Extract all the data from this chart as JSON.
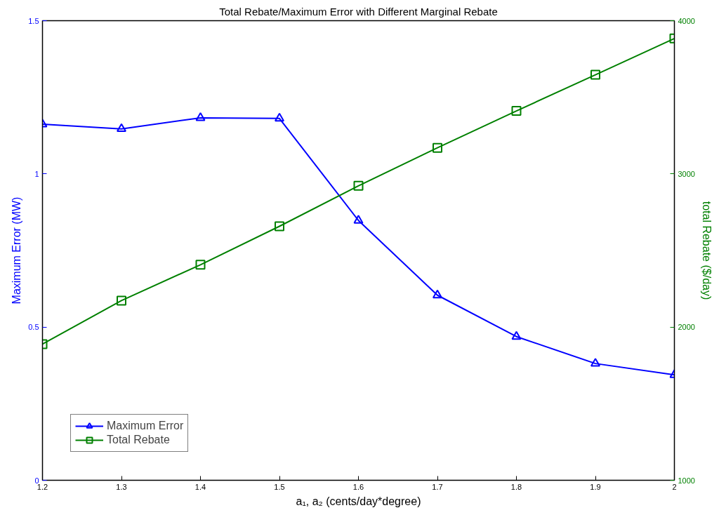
{
  "chart_data": {
    "type": "line",
    "title": "Total Rebate/Maximum Error with Different Marginal Rebate",
    "xlabel": "a₁, a₂ (cents/day*degree)",
    "ylabel": "Maximum Error (MW)",
    "y2label": "total Rebate ($/day)",
    "x": [
      1.2,
      1.3,
      1.4,
      1.5,
      1.6,
      1.7,
      1.8,
      1.9,
      2.0
    ],
    "series": [
      {
        "name": "Maximum Error",
        "color": "#0000ff",
        "marker": "triangle",
        "values": [
          1.162,
          1.147,
          1.183,
          1.181,
          0.848,
          0.604,
          0.469,
          0.381,
          0.344
        ]
      },
      {
        "name": "Total Rebate",
        "color": "#008000",
        "marker": "square",
        "axis": "y2",
        "values": [
          1889,
          2173,
          2407,
          2658,
          2922,
          3170,
          3411,
          3647,
          3884
        ]
      }
    ],
    "xlim": [
      1.2,
      2.0
    ],
    "xticks": [
      1.2,
      1.3,
      1.4,
      1.5,
      1.6,
      1.7,
      1.8,
      1.9,
      {
        "value": 2.0,
        "label": "2"
      }
    ],
    "ylim": [
      0,
      1.5
    ],
    "yticks": [
      0,
      0.5,
      1,
      1.5
    ],
    "y2lim": [
      1000,
      4000
    ],
    "y2ticks": [
      1000,
      2000,
      3000,
      4000
    ],
    "grid": false,
    "legend": "bottom left",
    "line_style": "solid"
  }
}
